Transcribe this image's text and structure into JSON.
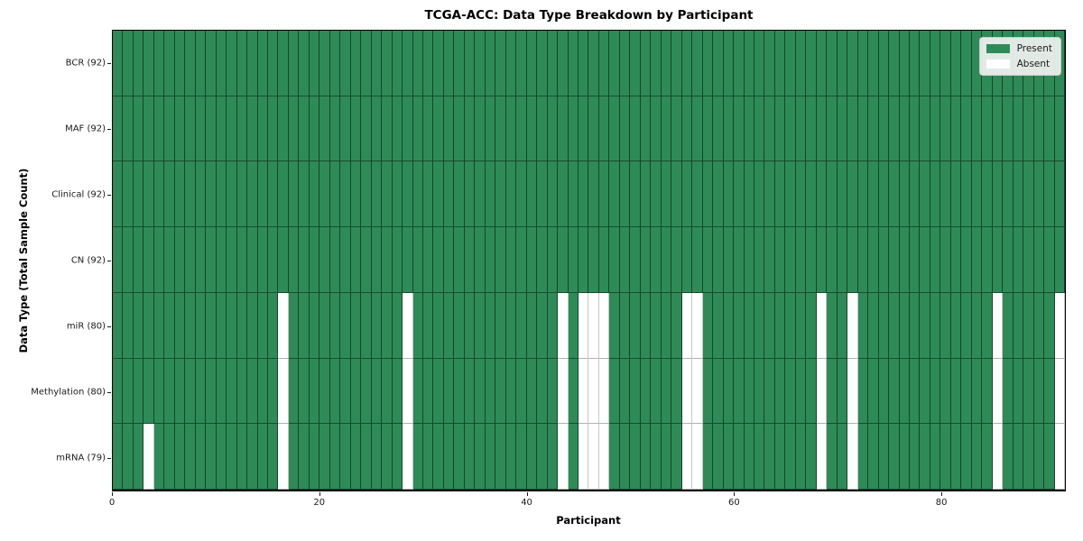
{
  "chart_data": {
    "type": "heatmap",
    "title": "TCGA-ACC: Data Type Breakdown by Participant",
    "xlabel": "Participant",
    "ylabel": "Data Type (Total Sample Count)",
    "n_participants": 92,
    "x_ticks": [
      0,
      20,
      40,
      60,
      80
    ],
    "grid": true,
    "legend_position": "upper right",
    "colors": {
      "present": "#2E8B57",
      "absent": "#FFFFFF"
    },
    "legend": [
      {
        "label": "Present",
        "color": "#2E8B57"
      },
      {
        "label": "Absent",
        "color": "#FFFFFF"
      }
    ],
    "rows": [
      {
        "label": "BCR (92)",
        "key": "bcr",
        "total": 92,
        "absent_participants": []
      },
      {
        "label": "MAF (92)",
        "key": "maf",
        "total": 92,
        "absent_participants": []
      },
      {
        "label": "Clinical (92)",
        "key": "clinical",
        "total": 92,
        "absent_participants": []
      },
      {
        "label": "CN (92)",
        "key": "cn",
        "total": 92,
        "absent_participants": []
      },
      {
        "label": "miR (80)",
        "key": "mir",
        "total": 80,
        "absent_participants": [
          16,
          28,
          43,
          45,
          46,
          47,
          55,
          56,
          68,
          71,
          85,
          91
        ]
      },
      {
        "label": "Methylation (80)",
        "key": "methylation",
        "total": 80,
        "absent_participants": [
          16,
          28,
          43,
          45,
          46,
          47,
          55,
          56,
          68,
          71,
          85,
          91
        ]
      },
      {
        "label": "mRNA (79)",
        "key": "mrna",
        "total": 79,
        "absent_participants": [
          3,
          16,
          28,
          43,
          45,
          46,
          47,
          55,
          56,
          68,
          71,
          85,
          91
        ]
      }
    ]
  }
}
